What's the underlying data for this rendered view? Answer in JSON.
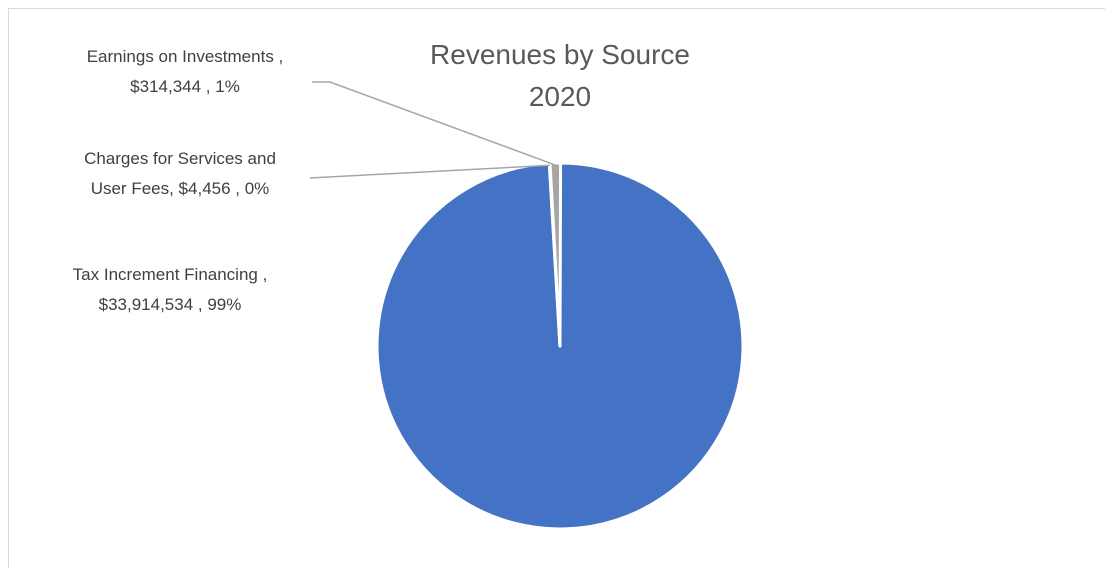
{
  "chart_data": {
    "type": "pie",
    "title_lines": [
      "Revenues by Source",
      "2020"
    ],
    "slices": [
      {
        "name": "Tax Increment Financing",
        "value": 33914534,
        "value_label": "$33,914,534",
        "percent_label": "99%",
        "label_lines": [
          "Tax Increment Financing ,",
          "$33,914,534 , 99%"
        ],
        "color": "#4472c4"
      },
      {
        "name": "Charges for Services and User Fees",
        "value": 4456,
        "value_label": "$4,456",
        "percent_label": "0%",
        "label_lines": [
          "Charges for Services and",
          "User Fees, $4,456 , 0%"
        ],
        "color": "#a5a5a5"
      },
      {
        "name": "Earnings on Investments",
        "value": 314344,
        "value_label": "$314,344",
        "percent_label": "1%",
        "label_lines": [
          "Earnings on Investments ,",
          "$314,344 , 1%"
        ],
        "color": "#a5a5a5"
      }
    ],
    "legend": "none"
  }
}
